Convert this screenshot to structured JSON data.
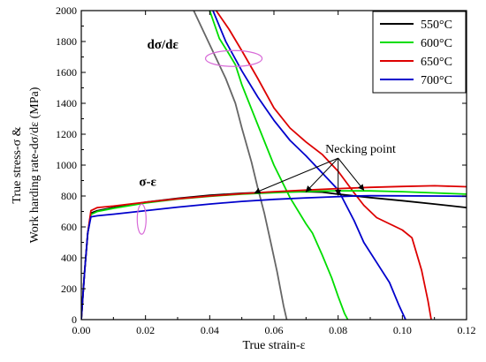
{
  "chart_data": {
    "type": "line",
    "xlabel": "True strain-ε",
    "ylabel_line1": "True stress-σ &",
    "ylabel_line2": "Work harding rate-dσ/dε (MPa)",
    "xlim": [
      0,
      0.12
    ],
    "ylim": [
      0,
      2000
    ],
    "x_ticks": [
      0.0,
      0.02,
      0.04,
      0.06,
      0.08,
      0.1,
      0.12
    ],
    "x_tick_labels": [
      "0.00",
      "0.02",
      "0.04",
      "0.06",
      "0.08",
      "0.10",
      "0.12"
    ],
    "y_ticks": [
      0,
      200,
      400,
      600,
      800,
      1000,
      1200,
      1400,
      1600,
      1800,
      2000
    ],
    "y_tick_labels": [
      "0",
      "200",
      "400",
      "600",
      "800",
      "1000",
      "1200",
      "1400",
      "1600",
      "1800",
      "2000"
    ],
    "grid": false,
    "legend_position": "top-right",
    "series": [
      {
        "name": "550°C",
        "color": "#000000",
        "stress_strain": [
          [
            0.0,
            0
          ],
          [
            0.001,
            300
          ],
          [
            0.002,
            560
          ],
          [
            0.003,
            690
          ],
          [
            0.005,
            705
          ],
          [
            0.01,
            725
          ],
          [
            0.02,
            760
          ],
          [
            0.03,
            785
          ],
          [
            0.04,
            805
          ],
          [
            0.05,
            818
          ],
          [
            0.06,
            826
          ],
          [
            0.07,
            828
          ],
          [
            0.075,
            825
          ],
          [
            0.08,
            812
          ],
          [
            0.09,
            790
          ],
          [
            0.1,
            770
          ],
          [
            0.11,
            748
          ],
          [
            0.12,
            725
          ]
        ],
        "hardening_rate": [
          [
            0.035,
            2000
          ],
          [
            0.04,
            1780
          ],
          [
            0.045,
            1560
          ],
          [
            0.048,
            1400
          ],
          [
            0.05,
            1240
          ],
          [
            0.053,
            1020
          ],
          [
            0.055,
            850
          ],
          [
            0.057,
            690
          ],
          [
            0.059,
            500
          ],
          [
            0.061,
            310
          ],
          [
            0.063,
            90
          ],
          [
            0.064,
            0
          ]
        ]
      },
      {
        "name": "600°C",
        "color": "#00dd00",
        "stress_strain": [
          [
            0.0,
            0
          ],
          [
            0.001,
            300
          ],
          [
            0.002,
            560
          ],
          [
            0.003,
            680
          ],
          [
            0.005,
            700
          ],
          [
            0.01,
            720
          ],
          [
            0.02,
            755
          ],
          [
            0.03,
            780
          ],
          [
            0.04,
            798
          ],
          [
            0.05,
            812
          ],
          [
            0.06,
            822
          ],
          [
            0.07,
            830
          ],
          [
            0.08,
            834
          ],
          [
            0.09,
            833
          ],
          [
            0.1,
            828
          ],
          [
            0.11,
            820
          ],
          [
            0.12,
            812
          ]
        ],
        "hardening_rate": [
          [
            0.04,
            2000
          ],
          [
            0.043,
            1820
          ],
          [
            0.046,
            1720
          ],
          [
            0.048,
            1650
          ],
          [
            0.05,
            1520
          ],
          [
            0.055,
            1260
          ],
          [
            0.06,
            1000
          ],
          [
            0.065,
            790
          ],
          [
            0.07,
            620
          ],
          [
            0.072,
            560
          ],
          [
            0.075,
            420
          ],
          [
            0.078,
            270
          ],
          [
            0.08,
            150
          ],
          [
            0.082,
            40
          ],
          [
            0.083,
            0
          ]
        ]
      },
      {
        "name": "650°C",
        "color": "#dd0000",
        "stress_strain": [
          [
            0.0,
            0
          ],
          [
            0.001,
            300
          ],
          [
            0.002,
            560
          ],
          [
            0.003,
            705
          ],
          [
            0.005,
            725
          ],
          [
            0.01,
            735
          ],
          [
            0.02,
            760
          ],
          [
            0.03,
            782
          ],
          [
            0.04,
            800
          ],
          [
            0.05,
            815
          ],
          [
            0.06,
            828
          ],
          [
            0.07,
            838
          ],
          [
            0.08,
            848
          ],
          [
            0.09,
            856
          ],
          [
            0.1,
            862
          ],
          [
            0.11,
            866
          ],
          [
            0.12,
            860
          ]
        ],
        "hardening_rate": [
          [
            0.042,
            2000
          ],
          [
            0.046,
            1880
          ],
          [
            0.05,
            1740
          ],
          [
            0.055,
            1560
          ],
          [
            0.06,
            1370
          ],
          [
            0.065,
            1240
          ],
          [
            0.07,
            1150
          ],
          [
            0.075,
            1070
          ],
          [
            0.08,
            960
          ],
          [
            0.085,
            820
          ],
          [
            0.088,
            740
          ],
          [
            0.092,
            660
          ],
          [
            0.096,
            620
          ],
          [
            0.1,
            580
          ],
          [
            0.103,
            530
          ],
          [
            0.106,
            320
          ],
          [
            0.108,
            120
          ],
          [
            0.109,
            0
          ]
        ]
      },
      {
        "name": "700°C",
        "color": "#0000cc",
        "stress_strain": [
          [
            0.0,
            0
          ],
          [
            0.001,
            300
          ],
          [
            0.002,
            560
          ],
          [
            0.003,
            665
          ],
          [
            0.005,
            672
          ],
          [
            0.01,
            682
          ],
          [
            0.02,
            705
          ],
          [
            0.03,
            728
          ],
          [
            0.04,
            748
          ],
          [
            0.05,
            765
          ],
          [
            0.06,
            778
          ],
          [
            0.07,
            788
          ],
          [
            0.08,
            796
          ],
          [
            0.085,
            800
          ],
          [
            0.09,
            802
          ],
          [
            0.1,
            801
          ],
          [
            0.11,
            800
          ],
          [
            0.12,
            798
          ]
        ],
        "hardening_rate": [
          [
            0.041,
            2000
          ],
          [
            0.045,
            1800
          ],
          [
            0.05,
            1610
          ],
          [
            0.055,
            1440
          ],
          [
            0.06,
            1290
          ],
          [
            0.065,
            1160
          ],
          [
            0.07,
            1060
          ],
          [
            0.075,
            950
          ],
          [
            0.08,
            840
          ],
          [
            0.085,
            640
          ],
          [
            0.088,
            500
          ],
          [
            0.092,
            370
          ],
          [
            0.096,
            240
          ],
          [
            0.099,
            90
          ],
          [
            0.101,
            0
          ]
        ]
      }
    ],
    "annotations": {
      "derivative_label": "dσ/dε",
      "stress_label": "σ-ε",
      "necking_label": "Necking point",
      "necking_points": [
        [
          0.054,
          820
        ],
        [
          0.07,
          828
        ],
        [
          0.08,
          805
        ],
        [
          0.088,
          838
        ]
      ],
      "necking_label_anchor": [
        0.076,
        1080
      ]
    }
  }
}
